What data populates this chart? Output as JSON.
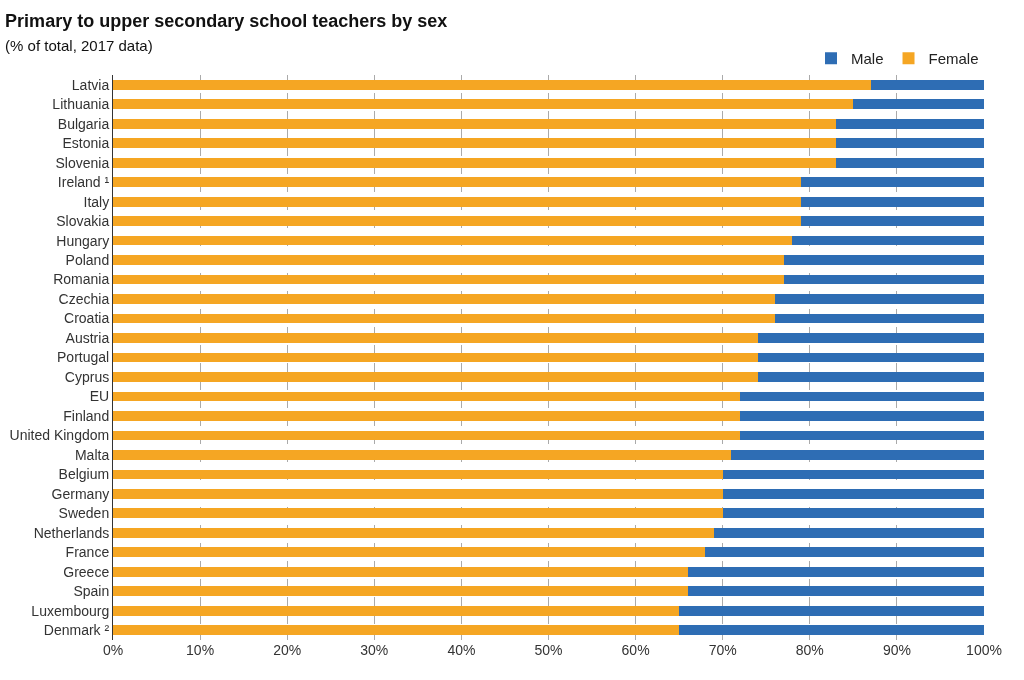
{
  "chart_data": {
    "type": "bar",
    "orientation": "horizontal",
    "stacked": true,
    "title": "Primary to upper secondary school teachers by sex",
    "subtitle": "(% of total, 2017 data)",
    "categories": [
      "Latvia",
      "Lithuania",
      "Bulgaria",
      "Estonia",
      "Slovenia",
      "Ireland ¹",
      "Italy",
      "Slovakia",
      "Hungary",
      "Poland",
      "Romania",
      "Czechia",
      "Croatia",
      "Austria",
      "Portugal",
      "Cyprus",
      "EU",
      "Finland",
      "United Kingdom",
      "Malta",
      "Belgium",
      "Germany",
      "Sweden",
      "Netherlands",
      "France",
      "Greece",
      "Spain",
      "Luxembourg",
      "Denmark ²"
    ],
    "series": [
      {
        "name": "Female",
        "color": "#f5a623",
        "values": [
          87,
          85,
          83,
          83,
          83,
          79,
          79,
          79,
          78,
          77,
          77,
          76,
          76,
          74,
          74,
          74,
          72,
          72,
          72,
          71,
          70,
          70,
          70,
          69,
          68,
          66,
          66,
          65,
          65
        ]
      },
      {
        "name": "Male",
        "color": "#2e6db4",
        "values": [
          13,
          15,
          17,
          17,
          17,
          21,
          21,
          21,
          22,
          23,
          23,
          24,
          24,
          26,
          26,
          26,
          28,
          28,
          28,
          29,
          30,
          30,
          30,
          31,
          32,
          34,
          34,
          35,
          35
        ]
      }
    ],
    "xlim": [
      0,
      100
    ],
    "xticks": [
      {
        "value": 0,
        "label": "0%"
      },
      {
        "value": 10,
        "label": "10%"
      },
      {
        "value": 20,
        "label": "20%"
      },
      {
        "value": 30,
        "label": "30%"
      },
      {
        "value": 40,
        "label": "40%"
      },
      {
        "value": 50,
        "label": "50%"
      },
      {
        "value": 60,
        "label": "60%"
      },
      {
        "value": 70,
        "label": "70%"
      },
      {
        "value": 80,
        "label": "80%"
      },
      {
        "value": 90,
        "label": "90%"
      },
      {
        "value": 100,
        "label": "100%"
      }
    ],
    "grid": "x",
    "legend": "top right"
  }
}
